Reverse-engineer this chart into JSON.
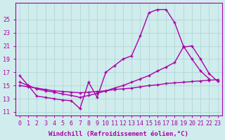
{
  "background_color": "#d0ecec",
  "grid_color": "#a8d4d4",
  "line_color": "#aa00aa",
  "markersize": 2.5,
  "linewidth": 1.0,
  "xlabel": "Windchill (Refroidissement éolien,°C)",
  "xlabel_fontsize": 6.5,
  "tick_fontsize": 6,
  "xlim": [
    -0.5,
    23.5
  ],
  "ylim": [
    10.5,
    27.5
  ],
  "yticks": [
    11,
    13,
    15,
    17,
    19,
    21,
    23,
    25
  ],
  "xticks": [
    0,
    1,
    2,
    3,
    4,
    5,
    6,
    7,
    8,
    9,
    10,
    11,
    12,
    13,
    14,
    15,
    16,
    17,
    18,
    19,
    20,
    21,
    22,
    23
  ],
  "c1_x": [
    0,
    1,
    2,
    3,
    4,
    5,
    6,
    7,
    8,
    9,
    10,
    11,
    12,
    13,
    14,
    15,
    16,
    17,
    18,
    19,
    20,
    21,
    22
  ],
  "c1_y": [
    16.5,
    15.0,
    13.4,
    13.2,
    13.0,
    12.8,
    12.7,
    11.5,
    15.5,
    13.2,
    17.0,
    18.0,
    19.0,
    19.5,
    22.5,
    26.0,
    26.5,
    26.5,
    24.5,
    21.0,
    19.0,
    17.2,
    16.0
  ],
  "c2_x": [
    0,
    1,
    2,
    3,
    4,
    5,
    6,
    7,
    8,
    9,
    10,
    11,
    12,
    13,
    14,
    15,
    16,
    17,
    18,
    19,
    20,
    21,
    22,
    23
  ],
  "c2_y": [
    15.5,
    15.0,
    14.5,
    14.2,
    14.0,
    13.7,
    13.5,
    13.2,
    13.5,
    13.8,
    14.2,
    14.6,
    15.0,
    15.5,
    16.0,
    16.5,
    17.2,
    17.8,
    18.5,
    20.8,
    21.0,
    19.0,
    16.8,
    15.6
  ],
  "c3_x": [
    0,
    1,
    2,
    3,
    4,
    5,
    6,
    7,
    8,
    9,
    10,
    11,
    12,
    13,
    14,
    15,
    16,
    17,
    18,
    19,
    20,
    21,
    22,
    23
  ],
  "c3_y": [
    15.0,
    14.8,
    14.6,
    14.4,
    14.2,
    14.1,
    14.0,
    13.9,
    14.0,
    14.1,
    14.2,
    14.4,
    14.5,
    14.6,
    14.8,
    15.0,
    15.1,
    15.3,
    15.4,
    15.5,
    15.6,
    15.7,
    15.8,
    15.9
  ]
}
